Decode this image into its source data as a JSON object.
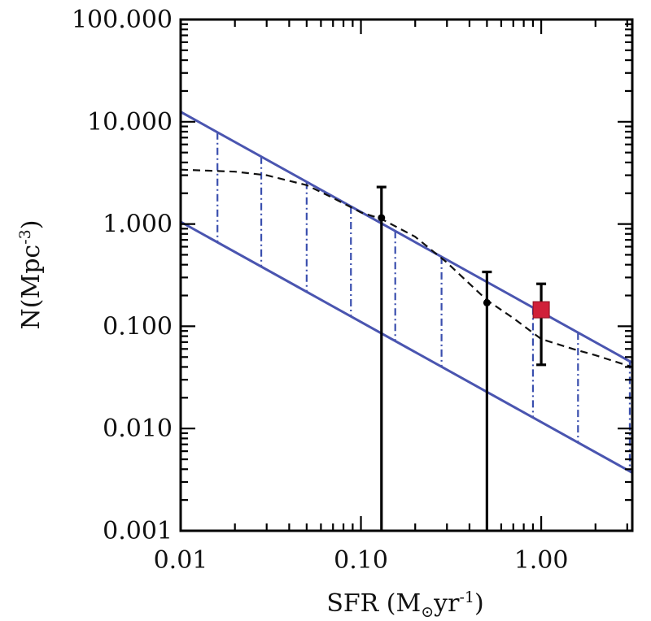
{
  "chart_data": {
    "type": "line",
    "xscale": "log",
    "yscale": "log",
    "xlim": [
      0.01,
      3.2
    ],
    "ylim": [
      0.001,
      100
    ],
    "xticks": [
      {
        "value": 0.01,
        "label": "0.01"
      },
      {
        "value": 0.1,
        "label": "0.10"
      },
      {
        "value": 1,
        "label": "1.00"
      }
    ],
    "yticks": [
      {
        "value": 0.001,
        "label": "0.001"
      },
      {
        "value": 0.01,
        "label": "0.010"
      },
      {
        "value": 0.1,
        "label": "0.100"
      },
      {
        "value": 1,
        "label": "1.000"
      },
      {
        "value": 10,
        "label": "10.000"
      },
      {
        "value": 100,
        "label": "100.000"
      }
    ],
    "xlabel": {
      "main": "SFR (M",
      "sub": "⊙",
      "mid": "yr",
      "sup": "-1",
      "end": ")"
    },
    "ylabel": {
      "main": "N(Mpc",
      "sup": "-3",
      "end": ")"
    },
    "colors": {
      "band": "#4a55b0",
      "hatch": "#3a4fae",
      "dashed": "#111111",
      "errorbar": "#000000",
      "marker": "#d0203a"
    },
    "band": {
      "upper": {
        "x": [
          0.01,
          3.2
        ],
        "y": [
          12.5,
          0.044
        ]
      },
      "lower": {
        "x": [
          0.01,
          3.2
        ],
        "y": [
          1.05,
          0.0037
        ]
      },
      "hatch_x": [
        0.016,
        0.028,
        0.05,
        0.088,
        0.155,
        0.28,
        0.5,
        0.9,
        1.6,
        3.1
      ]
    },
    "dashed_curve": {
      "x": [
        0.01,
        0.016,
        0.02,
        0.03,
        0.05,
        0.07,
        0.1,
        0.13,
        0.2,
        0.3,
        0.5,
        0.7,
        1.0,
        1.5,
        2.0,
        3.2
      ],
      "y": [
        3.4,
        3.3,
        3.25,
        3.0,
        2.4,
        1.8,
        1.3,
        1.12,
        0.75,
        0.42,
        0.18,
        0.12,
        0.075,
        0.06,
        0.052,
        0.04
      ]
    },
    "error_points": [
      {
        "x": 0.13,
        "y": 1.15,
        "y_low": 0.001,
        "y_high": 2.3
      },
      {
        "x": 0.5,
        "y": 0.17,
        "y_low": 0.001,
        "y_high": 0.34
      },
      {
        "x": 1.0,
        "y": 0.145,
        "y_low": 0.042,
        "y_high": 0.26,
        "marker": "square"
      }
    ]
  }
}
